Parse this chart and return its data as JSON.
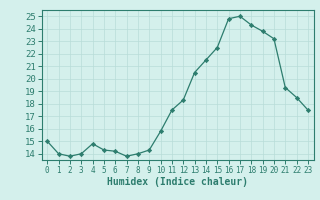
{
  "x": [
    0,
    1,
    2,
    3,
    4,
    5,
    6,
    7,
    8,
    9,
    10,
    11,
    12,
    13,
    14,
    15,
    16,
    17,
    18,
    19,
    20,
    21,
    22,
    23
  ],
  "y": [
    15.0,
    14.0,
    13.8,
    14.0,
    14.8,
    14.3,
    14.2,
    13.8,
    14.0,
    14.3,
    15.8,
    17.5,
    18.3,
    20.5,
    21.5,
    22.5,
    24.8,
    25.0,
    24.3,
    23.8,
    23.2,
    19.3,
    18.5,
    17.5
  ],
  "xlabel": "Humidex (Indice chaleur)",
  "line_color": "#2d7d6e",
  "marker_color": "#2d7d6e",
  "bg_color": "#d4f0ec",
  "grid_color": "#b8ddd8",
  "tick_color": "#2d7d6e",
  "spine_color": "#2d7d6e",
  "ylim": [
    13.5,
    25.5
  ],
  "yticks": [
    14,
    15,
    16,
    17,
    18,
    19,
    20,
    21,
    22,
    23,
    24,
    25
  ],
  "xticks": [
    0,
    1,
    2,
    3,
    4,
    5,
    6,
    7,
    8,
    9,
    10,
    11,
    12,
    13,
    14,
    15,
    16,
    17,
    18,
    19,
    20,
    21,
    22,
    23
  ],
  "xlabel_fontsize": 7,
  "ytick_fontsize": 6.5,
  "xtick_fontsize": 5.5
}
